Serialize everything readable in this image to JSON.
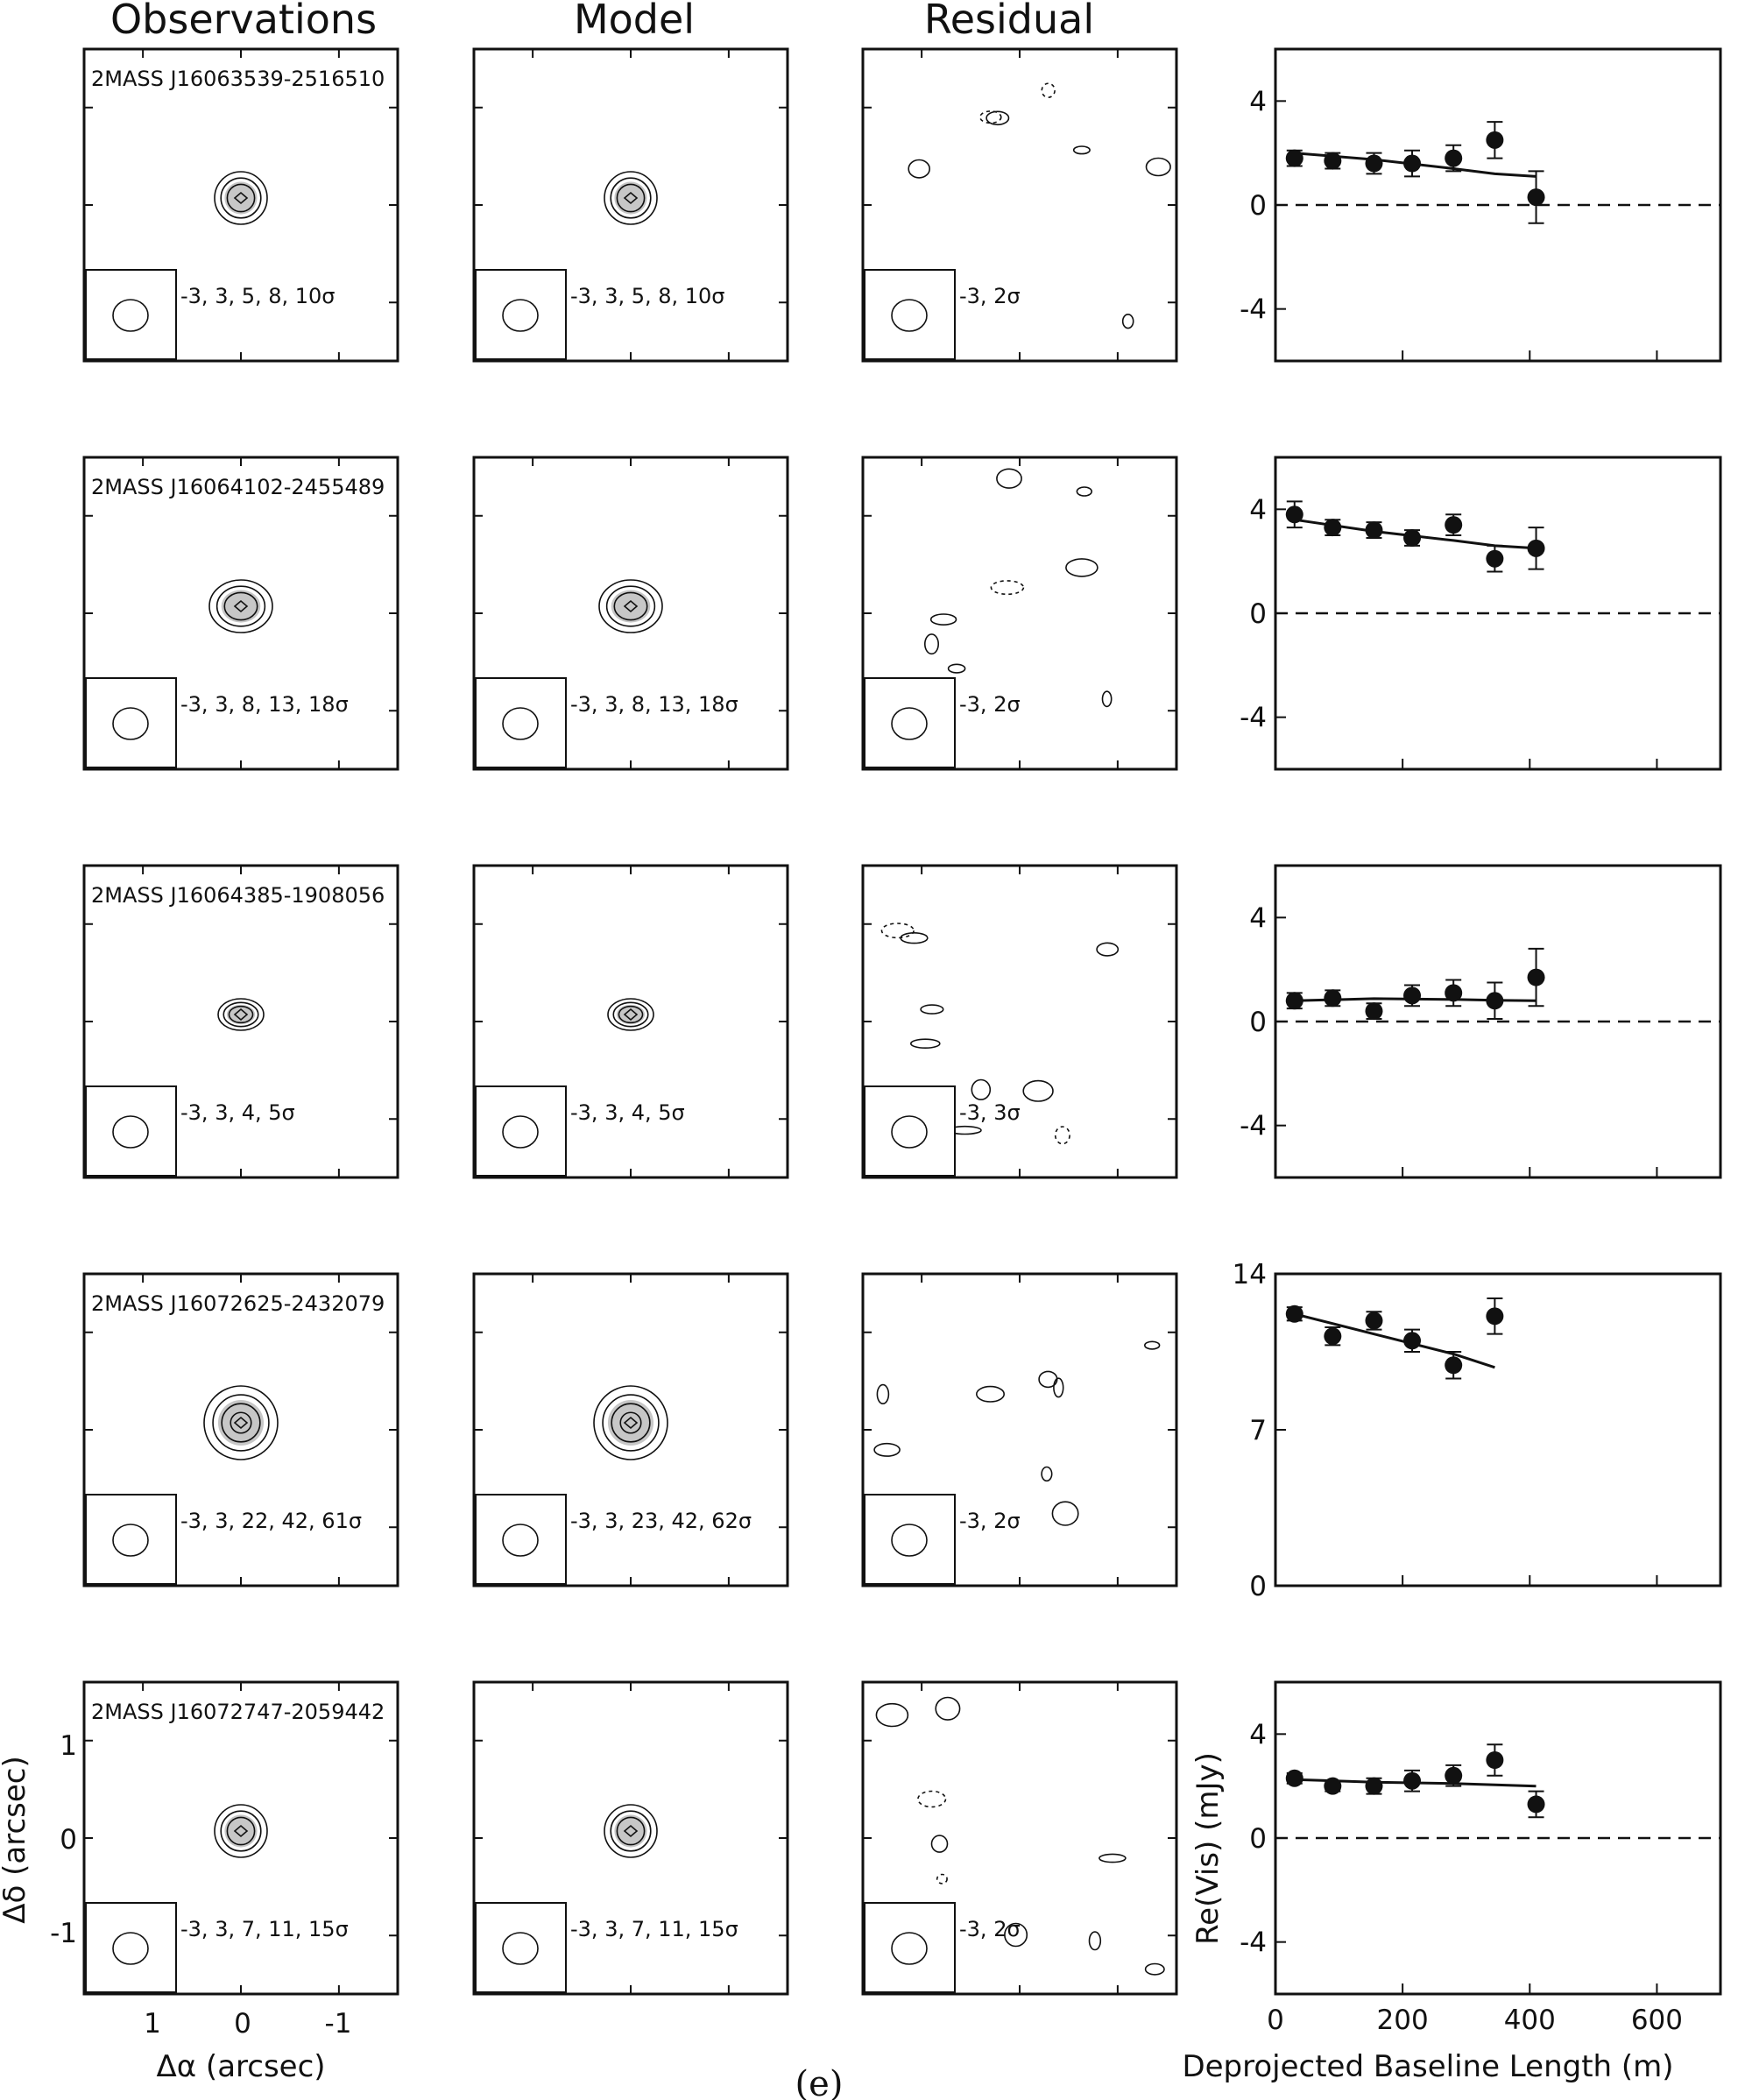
{
  "headers": [
    "Observations",
    "Model",
    "Residual"
  ],
  "caption": "(e)",
  "image_axes": {
    "xlabel": "Δα (arcsec)",
    "ylabel": "Δδ (arcsec)",
    "xticks": [
      "1",
      "0",
      "-1"
    ],
    "yticks": [
      "1",
      "0",
      "-1"
    ]
  },
  "chart_data": {
    "type": "scatter",
    "xlabel": "Deprojected Baseline Length (m)",
    "ylabel": "Re(Vis) (mJy)",
    "xlim": [
      0,
      700
    ],
    "xticks": [
      0,
      200,
      400,
      600
    ],
    "panels": [
      {
        "source": "2MASS J16063539-2516510",
        "obs_levels": "-3, 3, 5, 8, 10σ",
        "model_levels": "-3, 3, 5, 8, 10σ",
        "resid_levels": "-3, 2σ",
        "ylim": [
          -6,
          6
        ],
        "yticks": [
          4,
          0,
          -4
        ],
        "zero_line": true,
        "x": [
          30,
          90,
          155,
          215,
          280,
          345,
          410
        ],
        "y": [
          1.8,
          1.7,
          1.6,
          1.6,
          1.8,
          2.5,
          0.3
        ],
        "err": [
          0.3,
          0.3,
          0.4,
          0.5,
          0.5,
          0.7,
          1.0
        ],
        "model": [
          [
            30,
            2.0
          ],
          [
            155,
            1.75
          ],
          [
            280,
            1.4
          ],
          [
            345,
            1.2
          ],
          [
            410,
            1.1
          ]
        ]
      },
      {
        "source": "2MASS J16064102-2455489",
        "obs_levels": "-3, 3, 8, 13, 18σ",
        "model_levels": "-3, 3, 8, 13, 18σ",
        "resid_levels": "-3, 2σ",
        "ylim": [
          -6,
          6
        ],
        "yticks": [
          4,
          0,
          -4
        ],
        "zero_line": true,
        "x": [
          30,
          90,
          155,
          215,
          280,
          345,
          410
        ],
        "y": [
          3.8,
          3.3,
          3.2,
          2.9,
          3.4,
          2.1,
          2.5
        ],
        "err": [
          0.5,
          0.3,
          0.3,
          0.3,
          0.4,
          0.5,
          0.8
        ],
        "model": [
          [
            30,
            3.6
          ],
          [
            155,
            3.15
          ],
          [
            280,
            2.8
          ],
          [
            345,
            2.6
          ],
          [
            410,
            2.5
          ]
        ]
      },
      {
        "source": "2MASS J16064385-1908056",
        "obs_levels": "-3, 3, 4, 5σ",
        "model_levels": "-3, 3, 4, 5σ",
        "resid_levels": "-3, 3σ",
        "ylim": [
          -6,
          6
        ],
        "yticks": [
          4,
          0,
          -4
        ],
        "zero_line": true,
        "x": [
          30,
          90,
          155,
          215,
          280,
          345,
          410
        ],
        "y": [
          0.8,
          0.9,
          0.4,
          1.0,
          1.1,
          0.8,
          1.7
        ],
        "err": [
          0.3,
          0.3,
          0.3,
          0.4,
          0.5,
          0.7,
          1.1
        ],
        "model": [
          [
            30,
            0.8
          ],
          [
            155,
            0.88
          ],
          [
            280,
            0.85
          ],
          [
            345,
            0.82
          ],
          [
            410,
            0.8
          ]
        ]
      },
      {
        "source": "2MASS J16072625-2432079",
        "obs_levels": "-3, 3, 22, 42, 61σ",
        "model_levels": "-3, 3, 23, 42, 62σ",
        "resid_levels": "-3, 2σ",
        "ylim": [
          0,
          14
        ],
        "yticks": [
          14,
          7,
          0
        ],
        "zero_line": false,
        "x": [
          30,
          90,
          155,
          215,
          280,
          345
        ],
        "y": [
          12.2,
          11.2,
          11.9,
          11.0,
          9.9,
          12.1
        ],
        "err": [
          0.3,
          0.4,
          0.4,
          0.5,
          0.6,
          0.8
        ],
        "model": [
          [
            30,
            12.2
          ],
          [
            155,
            11.3
          ],
          [
            280,
            10.4
          ],
          [
            345,
            9.8
          ]
        ]
      },
      {
        "source": "2MASS J16072747-2059442",
        "obs_levels": "-3, 3, 7, 11, 15σ",
        "model_levels": "-3, 3, 7, 11, 15σ",
        "resid_levels": "-3, 2σ",
        "ylim": [
          -6,
          6
        ],
        "yticks": [
          4,
          0,
          -4
        ],
        "zero_line": true,
        "x": [
          30,
          90,
          155,
          215,
          280,
          345,
          410
        ],
        "y": [
          2.3,
          2.0,
          2.0,
          2.2,
          2.4,
          3.0,
          1.3
        ],
        "err": [
          0.2,
          0.2,
          0.3,
          0.4,
          0.4,
          0.6,
          0.5
        ],
        "model": [
          [
            30,
            2.25
          ],
          [
            155,
            2.15
          ],
          [
            280,
            2.1
          ],
          [
            345,
            2.05
          ],
          [
            410,
            2.0
          ]
        ]
      }
    ]
  }
}
